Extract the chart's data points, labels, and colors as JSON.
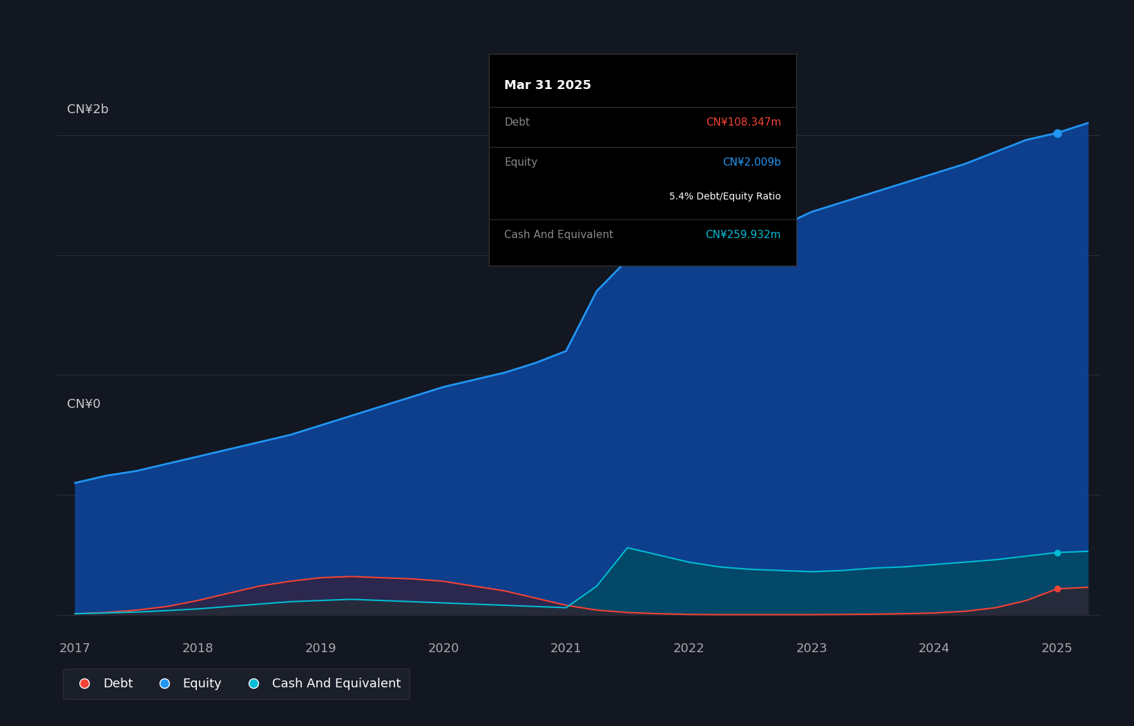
{
  "background_color": "#131722",
  "plot_bg_color": "#131722",
  "grid_color": "#2a2e39",
  "title_y_label": "CN¥2b",
  "zero_y_label": "CN¥0",
  "x_ticks": [
    2017,
    2018,
    2019,
    2020,
    2021,
    2022,
    2023,
    2024,
    2025
  ],
  "y_max": 2200000000,
  "y_min": -100000000,
  "equity_color": "#2196f3",
  "equity_fill": "#0d47a1",
  "debt_color": "#f44336",
  "debt_fill": "#4a1010",
  "cash_color": "#00bcd4",
  "cash_fill": "#004d5a",
  "tooltip_bg": "#000000",
  "tooltip_border": "#333333",
  "tooltip_title": "Mar 31 2025",
  "tooltip_debt_label": "Debt",
  "tooltip_debt_value": "CN¥108.347m",
  "tooltip_equity_label": "Equity",
  "tooltip_equity_value": "CN¥2.009b",
  "tooltip_ratio": "5.4% Debt/Equity Ratio",
  "tooltip_cash_label": "Cash And Equivalent",
  "tooltip_cash_value": "CN¥259.932m",
  "legend_debt": "Debt",
  "legend_equity": "Equity",
  "legend_cash": "Cash And Equivalent",
  "times": [
    2017.0,
    2017.25,
    2017.5,
    2017.75,
    2018.0,
    2018.25,
    2018.5,
    2018.75,
    2019.0,
    2019.25,
    2019.5,
    2019.75,
    2020.0,
    2020.25,
    2020.5,
    2020.75,
    2021.0,
    2021.25,
    2021.5,
    2021.75,
    2022.0,
    2022.25,
    2022.5,
    2022.75,
    2023.0,
    2023.25,
    2023.5,
    2023.75,
    2024.0,
    2024.25,
    2024.5,
    2024.75,
    2025.0,
    2025.25
  ],
  "equity": [
    550000000,
    580000000,
    600000000,
    630000000,
    660000000,
    690000000,
    720000000,
    750000000,
    790000000,
    830000000,
    870000000,
    910000000,
    950000000,
    980000000,
    1010000000,
    1050000000,
    1100000000,
    1350000000,
    1480000000,
    1500000000,
    1530000000,
    1560000000,
    1590000000,
    1620000000,
    1680000000,
    1720000000,
    1760000000,
    1800000000,
    1840000000,
    1880000000,
    1930000000,
    1980000000,
    2009000000,
    2050000000
  ],
  "debt": [
    5000000,
    10000000,
    20000000,
    35000000,
    60000000,
    90000000,
    120000000,
    140000000,
    155000000,
    160000000,
    155000000,
    150000000,
    140000000,
    120000000,
    100000000,
    70000000,
    40000000,
    20000000,
    10000000,
    5000000,
    2000000,
    1000000,
    1000000,
    1000000,
    1000000,
    2000000,
    3000000,
    5000000,
    8000000,
    15000000,
    30000000,
    60000000,
    108347000,
    115000000
  ],
  "cash": [
    5000000,
    8000000,
    12000000,
    18000000,
    25000000,
    35000000,
    45000000,
    55000000,
    60000000,
    65000000,
    60000000,
    55000000,
    50000000,
    45000000,
    40000000,
    35000000,
    30000000,
    120000000,
    280000000,
    250000000,
    220000000,
    200000000,
    190000000,
    185000000,
    180000000,
    185000000,
    195000000,
    200000000,
    210000000,
    220000000,
    230000000,
    245000000,
    259932000,
    265000000
  ]
}
